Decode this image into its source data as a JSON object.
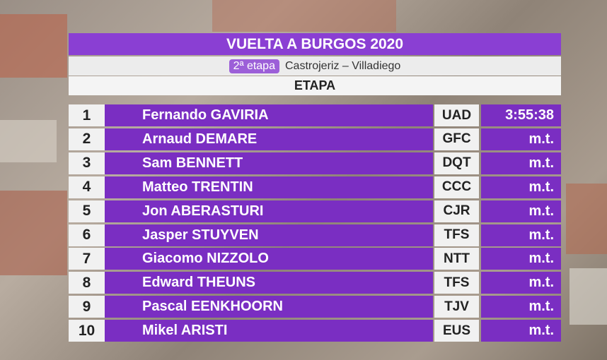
{
  "header": {
    "title": "VUELTA A BURGOS 2020",
    "stage": "2ª etapa",
    "route": "Castrojeriz – Villadiego",
    "classification": "ETAPA"
  },
  "results": [
    {
      "position": 1,
      "rider": "Fernando GAVIRIA",
      "team": "UAD",
      "time": "3:55:38"
    },
    {
      "position": 2,
      "rider": "Arnaud DEMARE",
      "team": "GFC",
      "time": "m.t."
    },
    {
      "position": 3,
      "rider": "Sam BENNETT",
      "team": "DQT",
      "time": "m.t."
    },
    {
      "position": 4,
      "rider": "Matteo TRENTIN",
      "team": "CCC",
      "time": "m.t."
    },
    {
      "position": 5,
      "rider": "Jon ABERASTURI",
      "team": "CJR",
      "time": "m.t."
    },
    {
      "position": 6,
      "rider": "Jasper STUYVEN",
      "team": "TFS",
      "time": "m.t."
    },
    {
      "position": 7,
      "rider": "Giacomo NIZZOLO",
      "team": "NTT",
      "time": "m.t."
    },
    {
      "position": 8,
      "rider": "Edward THEUNS",
      "team": "TFS",
      "time": "m.t."
    },
    {
      "position": 9,
      "rider": "Pascal EENKHOORN",
      "team": "TJV",
      "time": "m.t."
    },
    {
      "position": 10,
      "rider": "Mikel ARISTI",
      "team": "EUS",
      "time": "m.t."
    }
  ]
}
